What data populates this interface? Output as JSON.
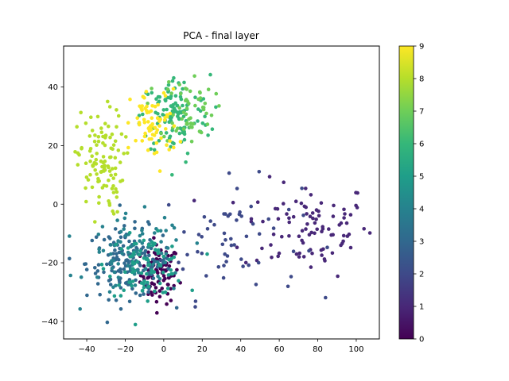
{
  "chart_data": {
    "type": "scatter",
    "title": "PCA - final layer",
    "xlim": [
      -52,
      112
    ],
    "ylim": [
      -46,
      54
    ],
    "x_ticks": [
      -40,
      -20,
      0,
      20,
      40,
      60,
      80,
      100
    ],
    "y_ticks": [
      -40,
      -20,
      0,
      20,
      40
    ],
    "grid": false,
    "colorbar": {
      "colormap": "viridis",
      "range": [
        0,
        9
      ],
      "ticks": [
        0,
        1,
        2,
        3,
        4,
        5,
        6,
        7,
        8,
        9
      ]
    },
    "clusters": [
      {
        "label": 0,
        "n": 85,
        "center": [
          -2,
          -24
        ],
        "spread": [
          5,
          5
        ]
      },
      {
        "label": 1,
        "n": 95,
        "center": [
          75,
          -8
        ],
        "spread": [
          17,
          8
        ]
      },
      {
        "label": 2,
        "n": 60,
        "center": [
          35,
          -12
        ],
        "spread": [
          18,
          10
        ]
      },
      {
        "label": 3,
        "n": 150,
        "center": [
          -18,
          -20
        ],
        "spread": [
          11,
          6
        ]
      },
      {
        "label": 4,
        "n": 85,
        "center": [
          -14,
          -18
        ],
        "spread": [
          13,
          7
        ]
      },
      {
        "label": 5,
        "n": 85,
        "center": [
          -9,
          -21
        ],
        "spread": [
          10,
          5
        ]
      },
      {
        "label": 6,
        "n": 120,
        "center": [
          6,
          30
        ],
        "spread": [
          9,
          7
        ]
      },
      {
        "label": 7,
        "n": 60,
        "center": [
          12,
          33
        ],
        "spread": [
          7,
          6
        ]
      },
      {
        "label": 8,
        "n": 115,
        "center": [
          -33,
          14
        ],
        "spread": [
          6,
          9
        ]
      },
      {
        "label": 9,
        "n": 70,
        "center": [
          -5,
          27
        ],
        "spread": [
          6,
          6
        ]
      }
    ]
  }
}
